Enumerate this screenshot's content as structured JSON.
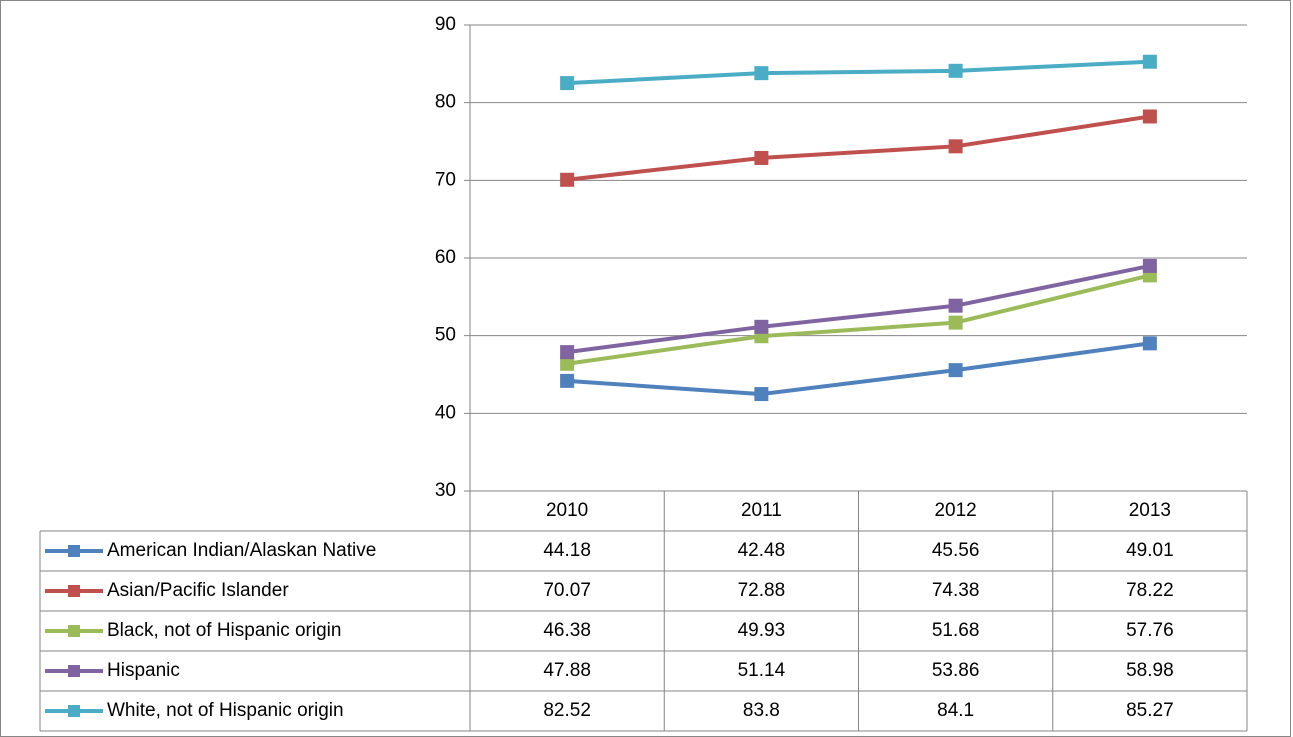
{
  "chart_data": {
    "type": "line",
    "categories": [
      "2010",
      "2011",
      "2012",
      "2013"
    ],
    "series": [
      {
        "name": "American Indian/Alaskan Native",
        "color": "#4f81bd",
        "values": [
          44.18,
          42.48,
          45.56,
          49.01
        ]
      },
      {
        "name": "Asian/Pacific Islander",
        "color": "#c0504d",
        "values": [
          70.07,
          72.88,
          74.38,
          78.22
        ]
      },
      {
        "name": "Black, not of Hispanic origin",
        "color": "#9bbb59",
        "values": [
          46.38,
          49.93,
          51.68,
          57.76
        ]
      },
      {
        "name": "Hispanic",
        "color": "#8064a2",
        "values": [
          47.88,
          51.14,
          53.86,
          58.98
        ]
      },
      {
        "name": "White, not of Hispanic origin",
        "color": "#4bacc6",
        "values": [
          82.52,
          83.8,
          84.1,
          85.27
        ]
      }
    ],
    "ylim": [
      30,
      90
    ],
    "yticks": [
      30,
      40,
      50,
      60,
      70,
      80,
      90
    ],
    "grid": true
  }
}
